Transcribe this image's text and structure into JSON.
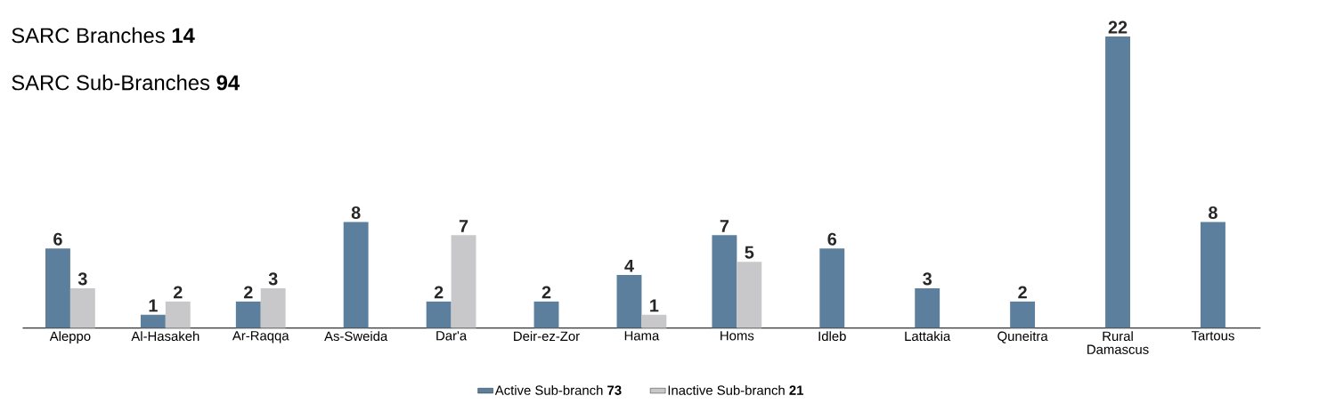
{
  "chart_data": {
    "type": "bar",
    "categories": [
      "Aleppo",
      "Al-Hasakeh",
      "Ar-Raqqa",
      "As-Sweida",
      "Dar'a",
      "Deir-ez-Zor",
      "Hama",
      "Homs",
      "Idleb",
      "Lattakia",
      "Quneitra",
      "Rural Damascus",
      "Tartous"
    ],
    "series": [
      {
        "name": "Active Sub-branch **73**",
        "color": "#5b7f9c",
        "values": [
          6,
          1,
          2,
          8,
          2,
          2,
          4,
          7,
          6,
          3,
          2,
          22,
          8
        ]
      },
      {
        "name": "Inactive Sub-branch **21**",
        "color": "#c8c8ca",
        "values": [
          3,
          2,
          3,
          null,
          7,
          null,
          1,
          5,
          null,
          null,
          null,
          null,
          null
        ]
      }
    ],
    "data_labels": true,
    "legend": "bottom",
    "annotations": [
      "SARC Branches **14**",
      "SARC Sub-Branches **94**"
    ]
  }
}
